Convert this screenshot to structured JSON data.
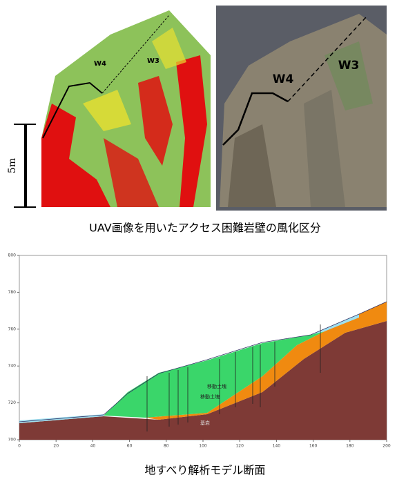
{
  "figure_top": {
    "left_labels": [
      "W4",
      "W3"
    ],
    "right_labels": [
      "W4",
      "W3"
    ],
    "scale": "5m",
    "caption": "UAV画像を用いたアクセス困難岩壁の風化区分"
  },
  "figure_bottom": {
    "yticks": [
      700,
      720,
      740,
      760,
      780,
      800
    ],
    "xticks": [
      0,
      20,
      40,
      60,
      80,
      100,
      120,
      140,
      160,
      180,
      200
    ],
    "layer_labels": [
      "移動土塊",
      "移動土塊",
      "基岩"
    ],
    "caption": "地すべり解析モデル断面"
  }
}
